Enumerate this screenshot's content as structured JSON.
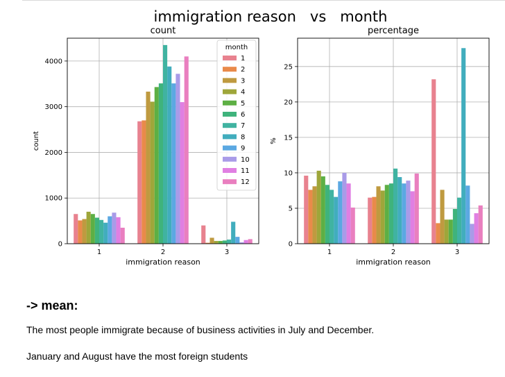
{
  "figure": {
    "suptitle": "immigration reason   vs   month"
  },
  "palette": [
    "#e8828f",
    "#e98a4a",
    "#bf9a40",
    "#9ea63a",
    "#5daf44",
    "#3fb37c",
    "#40b3a1",
    "#41adbd",
    "#5ba8e2",
    "#a99be8",
    "#e07fe2",
    "#e97fbf"
  ],
  "chart_data": [
    {
      "type": "bar",
      "title": "count",
      "xlabel": "immigration reason",
      "ylabel": "count",
      "categories": [
        "1",
        "2",
        "3"
      ],
      "ylim": [
        0,
        4500
      ],
      "yticks": [
        0,
        1000,
        2000,
        3000,
        4000
      ],
      "grid": true,
      "legend": {
        "title": "month",
        "placement": "top-right",
        "labels": [
          "1",
          "2",
          "3",
          "4",
          "5",
          "6",
          "7",
          "8",
          "9",
          "10",
          "11",
          "12"
        ]
      },
      "series": [
        {
          "name": "1",
          "values": [
            650,
            2680,
            400
          ]
        },
        {
          "name": "2",
          "values": [
            510,
            2700,
            20
          ]
        },
        {
          "name": "3",
          "values": [
            540,
            3330,
            130
          ]
        },
        {
          "name": "4",
          "values": [
            700,
            3110,
            60
          ]
        },
        {
          "name": "5",
          "values": [
            650,
            3430,
            60
          ]
        },
        {
          "name": "6",
          "values": [
            570,
            3510,
            70
          ]
        },
        {
          "name": "7",
          "values": [
            520,
            4350,
            90
          ]
        },
        {
          "name": "8",
          "values": [
            460,
            3880,
            480
          ]
        },
        {
          "name": "9",
          "values": [
            600,
            3510,
            150
          ]
        },
        {
          "name": "10",
          "values": [
            680,
            3720,
            30
          ]
        },
        {
          "name": "11",
          "values": [
            580,
            3100,
            80
          ]
        },
        {
          "name": "12",
          "values": [
            350,
            4100,
            100
          ]
        }
      ]
    },
    {
      "type": "bar",
      "title": "percentage",
      "xlabel": "immigration reason",
      "ylabel": "%",
      "categories": [
        "1",
        "2",
        "3"
      ],
      "ylim": [
        0,
        29
      ],
      "yticks": [
        0,
        5,
        10,
        15,
        20,
        25
      ],
      "grid": true,
      "series": [
        {
          "name": "1",
          "values": [
            9.6,
            6.5,
            23.2
          ]
        },
        {
          "name": "2",
          "values": [
            7.6,
            6.6,
            2.9
          ]
        },
        {
          "name": "3",
          "values": [
            8.1,
            8.1,
            7.6
          ]
        },
        {
          "name": "4",
          "values": [
            10.3,
            7.5,
            3.4
          ]
        },
        {
          "name": "5",
          "values": [
            9.5,
            8.3,
            3.4
          ]
        },
        {
          "name": "6",
          "values": [
            8.3,
            8.5,
            4.9
          ]
        },
        {
          "name": "7",
          "values": [
            7.6,
            10.6,
            6.5
          ]
        },
        {
          "name": "8",
          "values": [
            6.6,
            9.4,
            27.6
          ]
        },
        {
          "name": "9",
          "values": [
            8.8,
            8.5,
            8.2
          ]
        },
        {
          "name": "10",
          "values": [
            10.0,
            8.9,
            2.8
          ]
        },
        {
          "name": "11",
          "values": [
            8.5,
            7.4,
            4.3
          ]
        },
        {
          "name": "12",
          "values": [
            5.1,
            9.9,
            5.4
          ]
        }
      ]
    }
  ],
  "notes": {
    "heading": "-> mean:",
    "line1": "The most people immigrate because of business activities in July and December.",
    "line2": "January and August have the most foreign students"
  }
}
